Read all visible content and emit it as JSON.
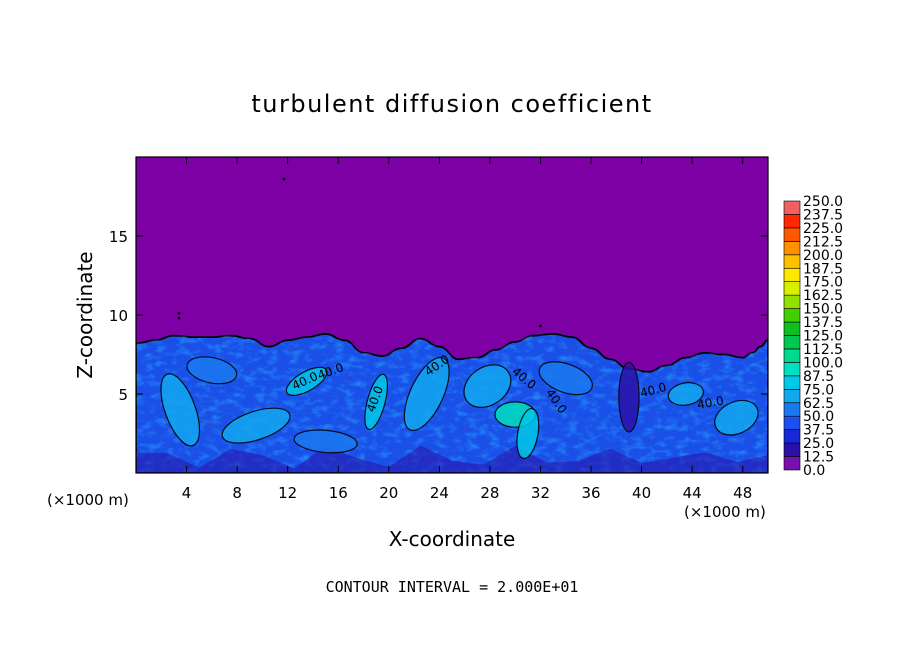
{
  "chart_data": {
    "type": "heatmap",
    "title": "turbulent diffusion coefficient",
    "xlabel": "X-coordinate",
    "ylabel": "Z-coordinate",
    "x_unit_left": "(×1000 m)",
    "x_unit_right": "(×1000 m)",
    "xlim": [
      0,
      50
    ],
    "ylim": [
      0,
      20
    ],
    "x_ticks": [
      4,
      8,
      12,
      16,
      20,
      24,
      28,
      32,
      36,
      40,
      44,
      48
    ],
    "x_tick_labels": [
      "4",
      "8",
      "12",
      "16",
      "20",
      "24",
      "28",
      "32",
      "36",
      "40",
      "44",
      "48"
    ],
    "y_ticks": [
      5,
      10,
      15
    ],
    "y_tick_labels": [
      "5",
      "10",
      "15"
    ],
    "footer": "CONTOUR INTERVAL = 2.000E+01",
    "contour_labels": [
      "40.0",
      "40.0",
      "40.0",
      "40.0",
      "40.0",
      "40.0",
      "40.0",
      "40.0"
    ],
    "colorbar": {
      "levels": [
        0.0,
        12.5,
        25.0,
        37.5,
        50.0,
        62.5,
        75.0,
        87.5,
        100.0,
        112.5,
        125.0,
        137.5,
        150.0,
        162.5,
        175.0,
        187.5,
        200.0,
        212.5,
        225.0,
        237.5,
        250.0
      ],
      "labels": [
        "0.0",
        "12.5",
        "25.0",
        "37.5",
        "50.0",
        "62.5",
        "75.0",
        "87.5",
        "100.0",
        "112.5",
        "125.0",
        "137.5",
        "150.0",
        "162.5",
        "175.0",
        "187.5",
        "200.0",
        "212.5",
        "225.0",
        "237.5",
        "250.0"
      ],
      "colors": [
        "#7a10b0",
        "#2a10a8",
        "#1828d8",
        "#1e50f0",
        "#1a78f0",
        "#12a8f0",
        "#00c8e8",
        "#00e0c0",
        "#00d890",
        "#00c850",
        "#10c020",
        "#40d000",
        "#90e000",
        "#d8f000",
        "#ffe800",
        "#ffc000",
        "#ff9000",
        "#ff5800",
        "#ff2800",
        "#f06060"
      ]
    },
    "background_color": "#7d00a5",
    "field_boundary_z": [
      8.2,
      8.4,
      8.7,
      8.6,
      8.6,
      8.7,
      8.5,
      8.0,
      8.4,
      8.6,
      8.8,
      8.4,
      7.6,
      7.4,
      7.9,
      8.5,
      8.0,
      7.2,
      7.3,
      7.8,
      8.3,
      8.7,
      8.8,
      8.6,
      7.9,
      7.2,
      6.6,
      6.4,
      6.8,
      7.3,
      7.6,
      7.5,
      7.3,
      7.6,
      8.0,
      8.4
    ],
    "field_boundary_x": [
      0,
      1.5,
      3,
      4.5,
      6,
      7.5,
      9,
      10.5,
      12,
      13.5,
      15,
      16.5,
      18,
      19.5,
      21,
      22.5,
      24,
      25.5,
      27,
      28.5,
      30,
      31.5,
      33,
      34.5,
      36,
      37.5,
      39,
      40.5,
      42,
      43.5,
      45,
      46.5,
      48,
      48.8,
      49.4,
      50
    ]
  }
}
